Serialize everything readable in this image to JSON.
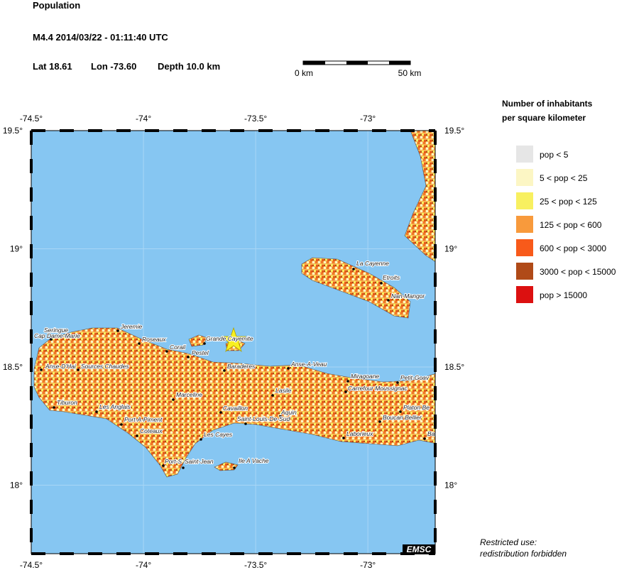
{
  "header": {
    "title": "Population",
    "event": "M4.4  2014/03/22 - 01:11:40 UTC",
    "lat": "Lat 18.61",
    "lon": "Lon -73.60",
    "depth": "Depth  10.0 km"
  },
  "scale_bar": {
    "start": "0 km",
    "end": "50 km"
  },
  "map": {
    "xlim": [
      -74.5,
      -72.7
    ],
    "ylim": [
      17.71,
      19.5
    ],
    "xticks": [
      {
        "value": -74.5,
        "label": "-74.5°"
      },
      {
        "value": -74,
        "label": "-74°"
      },
      {
        "value": -73.5,
        "label": "-73.5°"
      },
      {
        "value": -73,
        "label": "-73°"
      }
    ],
    "yticks": [
      {
        "value": 19.5,
        "label": "19.5°"
      },
      {
        "value": 19,
        "label": "19°"
      },
      {
        "value": 18.5,
        "label": "18.5°"
      },
      {
        "value": 18,
        "label": "18°"
      }
    ],
    "cities": [
      "Seringue",
      "Cap Dame-Marie",
      "Jeremie",
      "Roseaux",
      "Corail",
      "Pestel",
      "Grande Cayemite",
      "Anse-D'Hai",
      "Sources Chaudes",
      "Baraderes",
      "Anse-A-Veau",
      "Miragoane",
      "Petit-Goav",
      "Carrefour Moussignac",
      "Marceline",
      "Lasile",
      "Tiburon",
      "Les Anglais",
      "Cavaillon",
      "Aquin",
      "Saint-Louis-De-Sud",
      "Port-A-Piment",
      "Coteaux",
      "Les Cayes",
      "Platon Be",
      "Boucan Bellier",
      "Laborieux",
      "Ba",
      "Port-S",
      "Saint-Jean",
      "Ile A Vache",
      "La Cayenne",
      "Etroits",
      "Nan-Mangor"
    ],
    "logo": "EMSC"
  },
  "legend": {
    "title": [
      "Number of inhabitants",
      "per square kilometer"
    ],
    "items": [
      {
        "label": "pop < 5",
        "color": "#e6e6e6"
      },
      {
        "label": "5 < pop < 25",
        "color": "#fcf6c4"
      },
      {
        "label": "25 < pop < 125",
        "color": "#f8f060"
      },
      {
        "label": "125 < pop < 600",
        "color": "#f89a3c"
      },
      {
        "label": "600 < pop < 3000",
        "color": "#f85a1a"
      },
      {
        "label": "3000 < pop < 15000",
        "color": "#b04a18"
      },
      {
        "label": "pop > 15000",
        "color": "#dc1010"
      }
    ]
  },
  "footer": [
    "Restricted use:",
    "redistribution forbidden"
  ]
}
